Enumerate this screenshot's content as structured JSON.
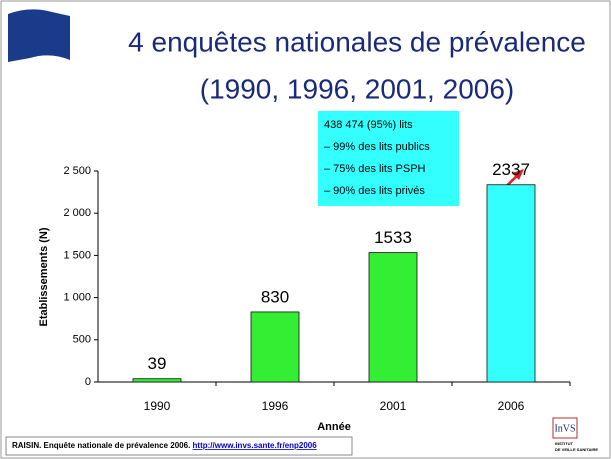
{
  "chart_data": {
    "type": "bar",
    "title": [
      "4 enquêtes nationales de prévalence",
      "(1990, 1996, 2001, 2006)"
    ],
    "categories": [
      "1990",
      "1996",
      "2001",
      "2006"
    ],
    "values": [
      39,
      830,
      1533,
      2337
    ],
    "colors": [
      "#33ee33",
      "#33ee33",
      "#33ee33",
      "#33ffff"
    ],
    "ylim": [
      0,
      2500
    ],
    "yticks": [
      0,
      500,
      {
        "value": 1000,
        "label": "1 000"
      },
      {
        "value": 1500,
        "label": "1 500"
      },
      {
        "value": 2000,
        "label": "2 000"
      },
      {
        "value": 2500,
        "label": "2 500"
      }
    ],
    "y_label": "Etablissements (N)",
    "x_label": "Année",
    "annotation": [
      "438 474 (95%) lits",
      "– 99% des lits publics",
      "– 75% des lits PSPH",
      "– 90% des lits privés"
    ]
  },
  "source": {
    "text": "RAISIN. Enquête nationale de prévalence 2006.",
    "link": "http://www.invs.sante.fr/enp2006"
  },
  "logo": {
    "name": "InVS",
    "line1": "INSTITUT",
    "line2": "DE VEILLE SANITAIRE"
  }
}
